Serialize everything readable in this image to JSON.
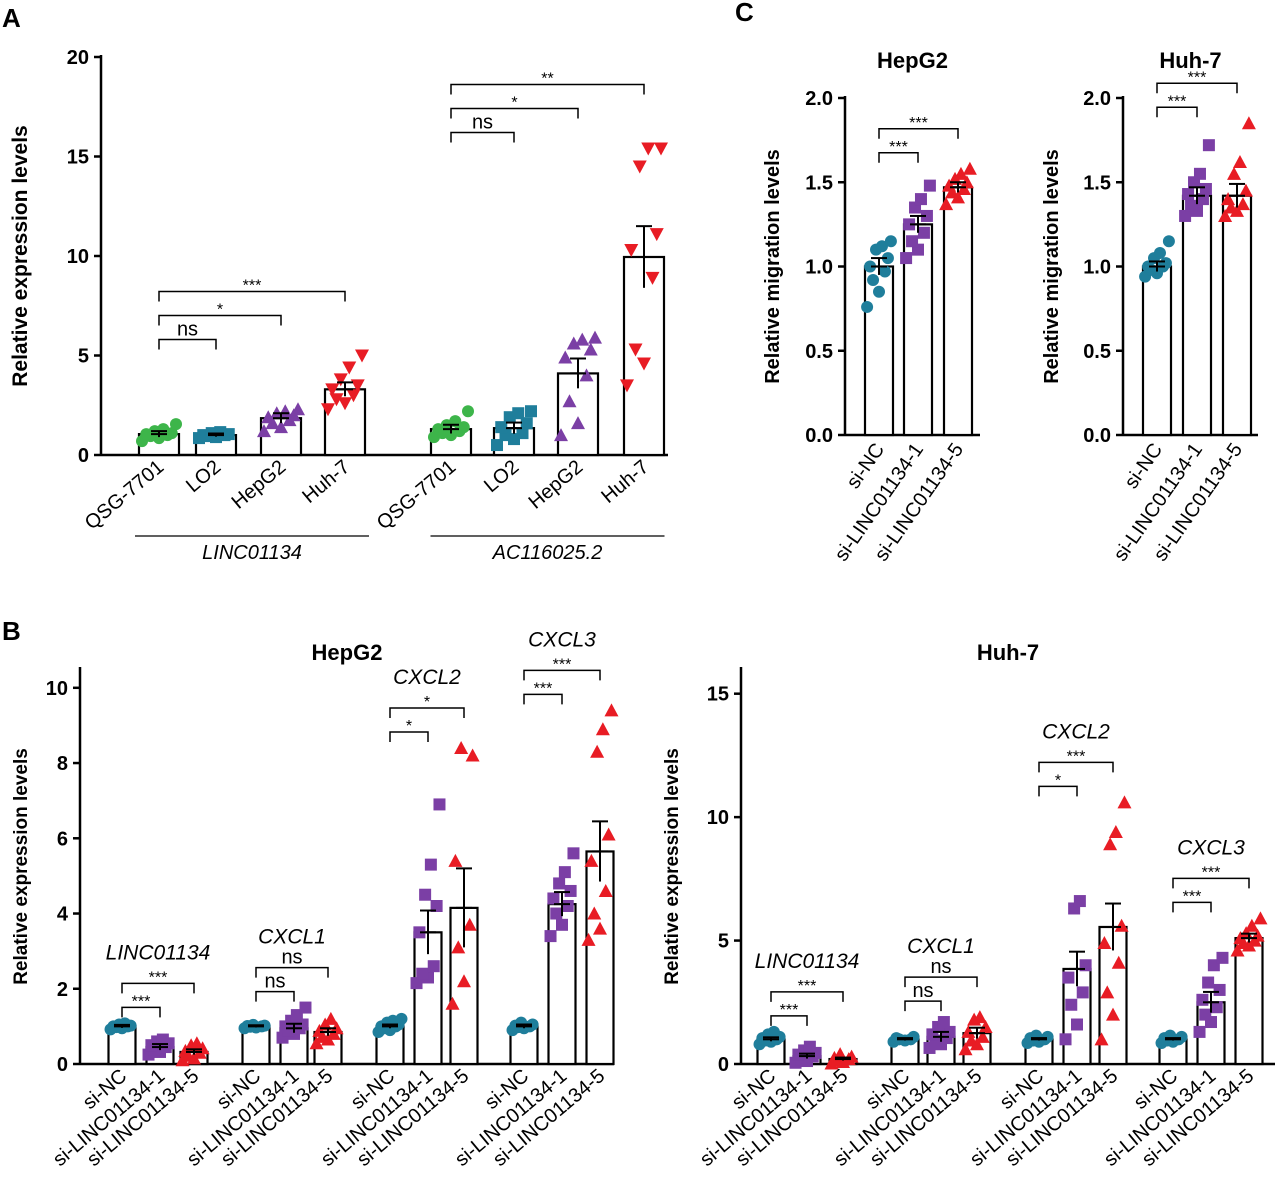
{
  "colors": {
    "green": "#3db54a",
    "teal": "#1f7e9b",
    "purple": "#7b3fa5",
    "red": "#e81c24",
    "axis": "#000000",
    "bar_fill": "#ffffff"
  },
  "chart_data": [
    {
      "id": "A",
      "panel_letter": "A",
      "type": "bar",
      "ylabel": "Relative  expression levels",
      "ylim": [
        0,
        20
      ],
      "yticks": [
        "0",
        "5",
        "10",
        "15",
        "20"
      ],
      "groups": [
        {
          "label": "LINC01134",
          "categories": [
            "QSG-7701",
            "LO2",
            "HepG2",
            "Huh-7"
          ],
          "values": [
            1.05,
            1.0,
            1.85,
            3.3
          ],
          "errors": [
            0.15,
            0.08,
            0.25,
            0.35
          ],
          "colors": [
            "green",
            "teal",
            "purple",
            "red"
          ],
          "markers": [
            "circle",
            "square",
            "triangle-up",
            "triangle-down"
          ],
          "points": [
            [
              0.7,
              0.85,
              0.95,
              1.0,
              1.05,
              1.1,
              1.2,
              1.3,
              1.55
            ],
            [
              0.85,
              0.9,
              0.95,
              1.0,
              1.0,
              1.05,
              1.1,
              1.15
            ],
            [
              1.2,
              1.4,
              1.6,
              1.75,
              1.9,
              2.0,
              2.1,
              2.2,
              2.3
            ],
            [
              2.3,
              2.6,
              2.8,
              3.0,
              3.3,
              3.5,
              3.8,
              4.4,
              5.0
            ]
          ],
          "comparisons": [
            {
              "from": 0,
              "to": 1,
              "label": "ns"
            },
            {
              "from": 0,
              "to": 2,
              "label": "*"
            },
            {
              "from": 0,
              "to": 3,
              "label": "***"
            }
          ]
        },
        {
          "label": "AC116025.2",
          "categories": [
            "QSG-7701",
            "LO2",
            "HepG2",
            "Huh-7"
          ],
          "values": [
            1.3,
            1.35,
            4.1,
            9.95
          ],
          "errors": [
            0.22,
            0.28,
            0.75,
            1.55
          ],
          "colors": [
            "green",
            "teal",
            "purple",
            "red"
          ],
          "markers": [
            "circle",
            "square",
            "triangle-up",
            "triangle-down"
          ],
          "points": [
            [
              0.9,
              1.0,
              1.1,
              1.2,
              1.3,
              1.4,
              1.5,
              1.7,
              2.2
            ],
            [
              0.5,
              0.8,
              1.0,
              1.1,
              1.4,
              1.6,
              1.9,
              2.1,
              2.2
            ],
            [
              1.0,
              1.6,
              2.7,
              4.0,
              4.9,
              5.3,
              5.6,
              5.8,
              5.9
            ],
            [
              3.5,
              4.6,
              5.3,
              8.9,
              10.3,
              11.1,
              14.5,
              15.4,
              15.4
            ]
          ],
          "comparisons": [
            {
              "from": 0,
              "to": 1,
              "label": "ns"
            },
            {
              "from": 0,
              "to": 2,
              "label": "*"
            },
            {
              "from": 0,
              "to": 3,
              "label": "**"
            }
          ]
        }
      ]
    },
    {
      "id": "B1",
      "panel_letter": "B",
      "type": "bar",
      "title": "HepG2",
      "ylabel": "Relative  expression levels",
      "ylim": [
        0,
        10.5
      ],
      "yticks": [
        "0",
        "2",
        "4",
        "6",
        "8",
        "10"
      ],
      "groups": [
        {
          "label": "LINC01134",
          "categories": [
            "si-NC",
            "si-LINC01134-1",
            "si-LINC01134-5"
          ],
          "values": [
            1.0,
            0.45,
            0.32
          ],
          "errors": [
            0.04,
            0.08,
            0.07
          ],
          "colors": [
            "teal",
            "purple",
            "red"
          ],
          "markers": [
            "circle",
            "square",
            "triangle-up"
          ],
          "points": [
            [
              0.92,
              0.95,
              0.98,
              1.0,
              1.0,
              1.02,
              1.05,
              1.08
            ],
            [
              0.25,
              0.32,
              0.38,
              0.45,
              0.5,
              0.55,
              0.6,
              0.65
            ],
            [
              0.1,
              0.15,
              0.22,
              0.3,
              0.35,
              0.42,
              0.5,
              0.55
            ]
          ],
          "comparisons": [
            {
              "from": 0,
              "to": 1,
              "label": "***"
            },
            {
              "from": 0,
              "to": 2,
              "label": "***"
            }
          ]
        },
        {
          "label": "CXCL1",
          "categories": [
            "si-NC",
            "si-LINC01134-1",
            "si-LINC01134-5"
          ],
          "values": [
            1.0,
            0.95,
            0.85
          ],
          "errors": [
            0.03,
            0.12,
            0.1
          ],
          "colors": [
            "teal",
            "purple",
            "red"
          ],
          "markers": [
            "circle",
            "square",
            "triangle-up"
          ],
          "points": [
            [
              0.95,
              0.97,
              0.99,
              1.0,
              1.01,
              1.02,
              1.04
            ],
            [
              0.7,
              0.8,
              0.88,
              0.95,
              1.0,
              1.05,
              1.15,
              1.3,
              1.5
            ],
            [
              0.55,
              0.65,
              0.72,
              0.8,
              0.88,
              0.95,
              1.05,
              1.2
            ]
          ],
          "comparisons": [
            {
              "from": 0,
              "to": 1,
              "label": "ns"
            },
            {
              "from": 0,
              "to": 2,
              "label": "ns"
            }
          ]
        },
        {
          "label": "CXCL2",
          "categories": [
            "si-NC",
            "si-LINC01134-1",
            "si-LINC01134-5"
          ],
          "values": [
            1.0,
            3.5,
            4.15
          ],
          "errors": [
            0.05,
            0.58,
            1.05
          ],
          "colors": [
            "teal",
            "purple",
            "red"
          ],
          "markers": [
            "circle",
            "square",
            "triangle-up"
          ],
          "points": [
            [
              0.85,
              0.9,
              0.95,
              1.0,
              1.0,
              1.05,
              1.1,
              1.15,
              1.2
            ],
            [
              2.15,
              2.3,
              2.4,
              2.6,
              3.5,
              4.2,
              4.5,
              5.3,
              6.9
            ],
            [
              1.6,
              2.2,
              3.1,
              3.7,
              5.4,
              8.2,
              8.4
            ]
          ],
          "comparisons": [
            {
              "from": 0,
              "to": 1,
              "label": "*"
            },
            {
              "from": 0,
              "to": 2,
              "label": "*"
            }
          ]
        },
        {
          "label": "CXCL3",
          "categories": [
            "si-NC",
            "si-LINC01134-1",
            "si-LINC01134-5"
          ],
          "values": [
            1.0,
            4.25,
            5.65
          ],
          "errors": [
            0.05,
            0.32,
            0.8
          ],
          "colors": [
            "teal",
            "purple",
            "red"
          ],
          "markers": [
            "circle",
            "square",
            "triangle-up"
          ],
          "points": [
            [
              0.9,
              0.95,
              0.98,
              1.0,
              1.02,
              1.05,
              1.1
            ],
            [
              3.4,
              3.7,
              4.0,
              4.2,
              4.4,
              4.6,
              4.8,
              5.1,
              5.6
            ],
            [
              3.3,
              3.6,
              4.0,
              4.6,
              5.4,
              6.1,
              8.3,
              8.9,
              9.4
            ]
          ],
          "comparisons": [
            {
              "from": 0,
              "to": 1,
              "label": "***"
            },
            {
              "from": 0,
              "to": 2,
              "label": "***"
            }
          ]
        }
      ]
    },
    {
      "id": "B2",
      "panel_letter": "",
      "type": "bar",
      "title": "Huh-7",
      "ylabel": "Relative  expression levels",
      "ylim": [
        0,
        16
      ],
      "yticks": [
        "0",
        "5",
        "10",
        "15"
      ],
      "groups": [
        {
          "label": "LINC01134",
          "categories": [
            "si-NC",
            "si-LINC01134-1",
            "si-LINC01134-5"
          ],
          "values": [
            1.0,
            0.32,
            0.2
          ],
          "errors": [
            0.08,
            0.1,
            0.06
          ],
          "colors": [
            "teal",
            "purple",
            "red"
          ],
          "markers": [
            "circle",
            "square",
            "triangle-up"
          ],
          "points": [
            [
              0.8,
              0.9,
              0.95,
              1.0,
              1.05,
              1.1,
              1.2,
              1.3
            ],
            [
              0.05,
              0.12,
              0.2,
              0.3,
              0.38,
              0.45,
              0.55,
              0.7
            ],
            [
              0.02,
              0.08,
              0.15,
              0.2,
              0.25,
              0.3,
              0.4
            ]
          ],
          "comparisons": [
            {
              "from": 0,
              "to": 1,
              "label": "***"
            },
            {
              "from": 0,
              "to": 2,
              "label": "***"
            }
          ]
        },
        {
          "label": "CXCL1",
          "categories": [
            "si-NC",
            "si-LINC01134-1",
            "si-LINC01134-5"
          ],
          "values": [
            1.0,
            1.1,
            1.25
          ],
          "errors": [
            0.05,
            0.2,
            0.22
          ],
          "colors": [
            "teal",
            "purple",
            "red"
          ],
          "markers": [
            "circle",
            "square",
            "triangle-up"
          ],
          "points": [
            [
              0.9,
              0.95,
              1.0,
              1.0,
              1.05,
              1.1
            ],
            [
              0.65,
              0.8,
              0.95,
              1.05,
              1.2,
              1.3,
              1.5,
              1.7
            ],
            [
              0.6,
              0.8,
              0.95,
              1.1,
              1.3,
              1.5,
              1.8,
              1.9
            ]
          ],
          "comparisons": [
            {
              "from": 0,
              "to": 1,
              "label": "ns"
            },
            {
              "from": 0,
              "to": 2,
              "label": "ns"
            }
          ]
        },
        {
          "label": "CXCL2",
          "categories": [
            "si-NC",
            "si-LINC01134-1",
            "si-LINC01134-5"
          ],
          "values": [
            1.0,
            3.85,
            5.55
          ],
          "errors": [
            0.05,
            0.7,
            0.95
          ],
          "colors": [
            "teal",
            "purple",
            "red"
          ],
          "markers": [
            "circle",
            "square",
            "triangle-up"
          ],
          "points": [
            [
              0.85,
              0.9,
              0.95,
              1.0,
              1.05,
              1.1,
              1.15
            ],
            [
              1.0,
              1.6,
              2.4,
              2.9,
              3.5,
              4.0,
              6.3,
              6.6
            ],
            [
              1.0,
              2.0,
              2.9,
              4.1,
              4.9,
              5.6,
              8.9,
              9.4,
              10.6
            ]
          ],
          "comparisons": [
            {
              "from": 0,
              "to": 1,
              "label": "*"
            },
            {
              "from": 0,
              "to": 2,
              "label": "***"
            }
          ]
        },
        {
          "label": "CXCL3",
          "categories": [
            "si-NC",
            "si-LINC01134-1",
            "si-LINC01134-5"
          ],
          "values": [
            1.0,
            2.5,
            5.1
          ],
          "errors": [
            0.05,
            0.42,
            0.18
          ],
          "colors": [
            "teal",
            "purple",
            "red"
          ],
          "markers": [
            "circle",
            "square",
            "triangle-up"
          ],
          "points": [
            [
              0.85,
              0.9,
              0.95,
              1.0,
              1.05,
              1.1,
              1.15
            ],
            [
              1.3,
              1.7,
              2.0,
              2.3,
              2.6,
              3.0,
              3.3,
              4.0,
              4.3
            ],
            [
              4.6,
              4.8,
              4.9,
              5.0,
              5.1,
              5.2,
              5.3,
              5.6,
              5.9
            ]
          ],
          "comparisons": [
            {
              "from": 0,
              "to": 1,
              "label": "***"
            },
            {
              "from": 0,
              "to": 2,
              "label": "***"
            }
          ]
        }
      ]
    },
    {
      "id": "C1",
      "panel_letter": "C",
      "type": "bar",
      "title": "HepG2",
      "ylabel": "Relative  migration levels",
      "ylim": [
        0,
        2.0
      ],
      "yticks": [
        "0.0",
        "0.5",
        "1.0",
        "1.5",
        "2.0"
      ],
      "groups": [
        {
          "label": "",
          "categories": [
            "si-NC",
            "si-LINC01134-1",
            "si-LINC01134-5"
          ],
          "values": [
            1.0,
            1.25,
            1.47
          ],
          "errors": [
            0.05,
            0.05,
            0.03
          ],
          "colors": [
            "teal",
            "purple",
            "red"
          ],
          "markers": [
            "circle",
            "square",
            "triangle-up"
          ],
          "points": [
            [
              0.76,
              0.85,
              0.92,
              0.97,
              1.0,
              1.05,
              1.1,
              1.12,
              1.15
            ],
            [
              1.05,
              1.1,
              1.15,
              1.2,
              1.25,
              1.3,
              1.35,
              1.4,
              1.48
            ],
            [
              1.37,
              1.41,
              1.44,
              1.46,
              1.48,
              1.5,
              1.52,
              1.55,
              1.58
            ]
          ],
          "comparisons": [
            {
              "from": 0,
              "to": 1,
              "label": "***"
            },
            {
              "from": 0,
              "to": 2,
              "label": "***"
            }
          ]
        }
      ]
    },
    {
      "id": "C2",
      "panel_letter": "",
      "type": "bar",
      "title": "Huh-7",
      "ylabel": "Relative  migration levels",
      "ylim": [
        0,
        2.0
      ],
      "yticks": [
        "0.0",
        "0.5",
        "1.0",
        "1.5",
        "2.0"
      ],
      "groups": [
        {
          "label": "",
          "categories": [
            "si-NC",
            "si-LINC01134-1",
            "si-LINC01134-5"
          ],
          "values": [
            1.0,
            1.42,
            1.42
          ],
          "errors": [
            0.03,
            0.05,
            0.07
          ],
          "colors": [
            "teal",
            "purple",
            "red"
          ],
          "markers": [
            "circle",
            "square",
            "triangle-up"
          ],
          "points": [
            [
              0.94,
              0.96,
              0.98,
              1.0,
              1.0,
              1.02,
              1.05,
              1.08,
              1.15
            ],
            [
              1.3,
              1.33,
              1.36,
              1.4,
              1.43,
              1.46,
              1.5,
              1.55,
              1.72
            ],
            [
              1.3,
              1.33,
              1.35,
              1.37,
              1.4,
              1.45,
              1.55,
              1.62,
              1.85
            ]
          ],
          "comparisons": [
            {
              "from": 0,
              "to": 1,
              "label": "***"
            },
            {
              "from": 0,
              "to": 2,
              "label": "***"
            }
          ]
        }
      ]
    }
  ]
}
